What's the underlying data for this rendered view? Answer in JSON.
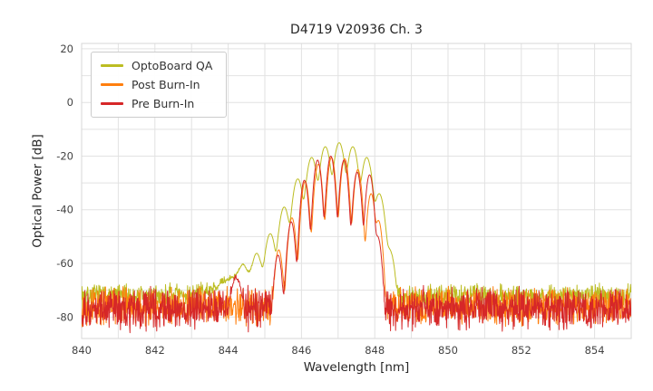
{
  "chart_data": {
    "type": "line",
    "title": "D4719 V20936 Ch. 3",
    "xlabel": "Wavelength [nm]",
    "ylabel": "Optical Power [dB]",
    "xlim": [
      840,
      855
    ],
    "ylim": [
      -88,
      22
    ],
    "xticks": [
      840,
      842,
      844,
      846,
      848,
      850,
      852,
      854
    ],
    "yticks": [
      20,
      0,
      -20,
      -40,
      -60,
      -80
    ],
    "x_grid_step": 1,
    "y_grid_step": 10,
    "grid": true,
    "grid_color": "#e2e2e2",
    "background": "#ffffff",
    "legend": {
      "position": "upper left"
    },
    "sample_step_nm": 0.01,
    "series": [
      {
        "name": "OptoBoard QA",
        "color": "#bcbd22",
        "seed": 7,
        "noise_base_db": -72,
        "noise_var_db": 2.5,
        "mode_sigma_nm": 0.105,
        "modes": [
          [
            844.4,
            -63
          ],
          [
            844.78,
            -57
          ],
          [
            845.15,
            -49
          ],
          [
            845.53,
            -39
          ],
          [
            845.9,
            -28.5
          ],
          [
            846.28,
            -20.5
          ],
          [
            846.65,
            -16.5
          ],
          [
            847.03,
            -15
          ],
          [
            847.4,
            -16.5
          ],
          [
            847.78,
            -20.5
          ],
          [
            848.12,
            -34
          ],
          [
            848.4,
            -55
          ]
        ],
        "pedestals": [
          {
            "center": 844.55,
            "sigma": 0.7,
            "level_db": -64.5
          }
        ]
      },
      {
        "name": "Post Burn-In",
        "color": "#ff7f0e",
        "seed": 13,
        "noise_base_db": -76,
        "noise_var_db": 4,
        "mode_sigma_nm": 0.075,
        "modes": [
          [
            845.38,
            -55
          ],
          [
            845.74,
            -43
          ],
          [
            846.1,
            -29.5
          ],
          [
            846.46,
            -23
          ],
          [
            846.82,
            -20.5
          ],
          [
            847.18,
            -21
          ],
          [
            847.54,
            -25
          ],
          [
            847.9,
            -34
          ],
          [
            848.1,
            -44
          ]
        ],
        "pedestals": []
      },
      {
        "name": "Pre Burn-In",
        "color": "#d62728",
        "seed": 29,
        "noise_base_db": -77,
        "noise_var_db": 4.5,
        "mode_sigma_nm": 0.075,
        "modes": [
          [
            845.36,
            -57
          ],
          [
            845.72,
            -44.5
          ],
          [
            846.08,
            -29
          ],
          [
            846.44,
            -21.5
          ],
          [
            846.8,
            -20
          ],
          [
            847.16,
            -21.5
          ],
          [
            847.52,
            -26
          ],
          [
            847.86,
            -27
          ],
          [
            848.08,
            -50
          ]
        ],
        "pedestals": [
          {
            "center": 844.22,
            "sigma": 0.12,
            "level_db": -66
          }
        ]
      }
    ]
  }
}
